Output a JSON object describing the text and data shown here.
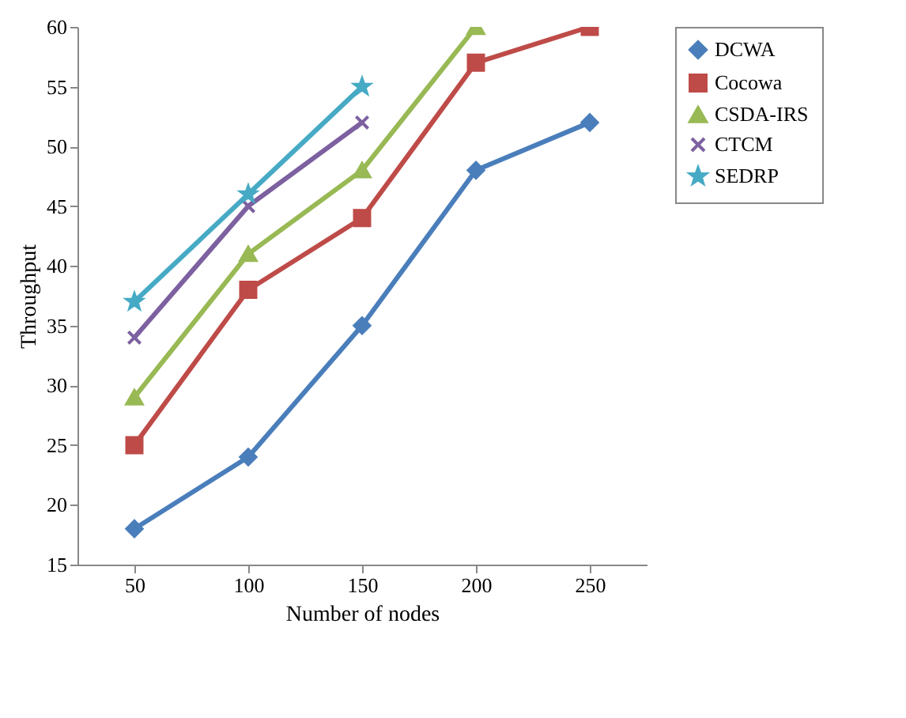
{
  "chart_data": {
    "type": "line",
    "xlabel": "Number of nodes",
    "ylabel": "Throughput",
    "categories": [
      "50",
      "100",
      "150",
      "200",
      "250"
    ],
    "ylim": [
      15,
      60
    ],
    "yticks": [
      15,
      20,
      25,
      30,
      35,
      40,
      45,
      50,
      55,
      60
    ],
    "grid": false,
    "legend": "right",
    "series": [
      {
        "name": "DCWA",
        "color": "#4a7ebb",
        "marker": "diamond",
        "values": [
          18,
          24,
          35,
          48,
          52
        ]
      },
      {
        "name": "Cocowa",
        "color": "#be4b48",
        "marker": "square",
        "values": [
          25,
          38,
          44,
          57,
          60
        ]
      },
      {
        "name": "CSDA-IRS",
        "color": "#98b954",
        "marker": "triangle",
        "values": [
          29,
          41,
          48,
          60,
          null
        ]
      },
      {
        "name": "CTCM",
        "color": "#7d60a0",
        "marker": "cross",
        "values": [
          34,
          45,
          52,
          null,
          null
        ]
      },
      {
        "name": "SEDRP",
        "color": "#46aac5",
        "marker": "star",
        "values": [
          37,
          46,
          55,
          null,
          null
        ]
      }
    ]
  }
}
